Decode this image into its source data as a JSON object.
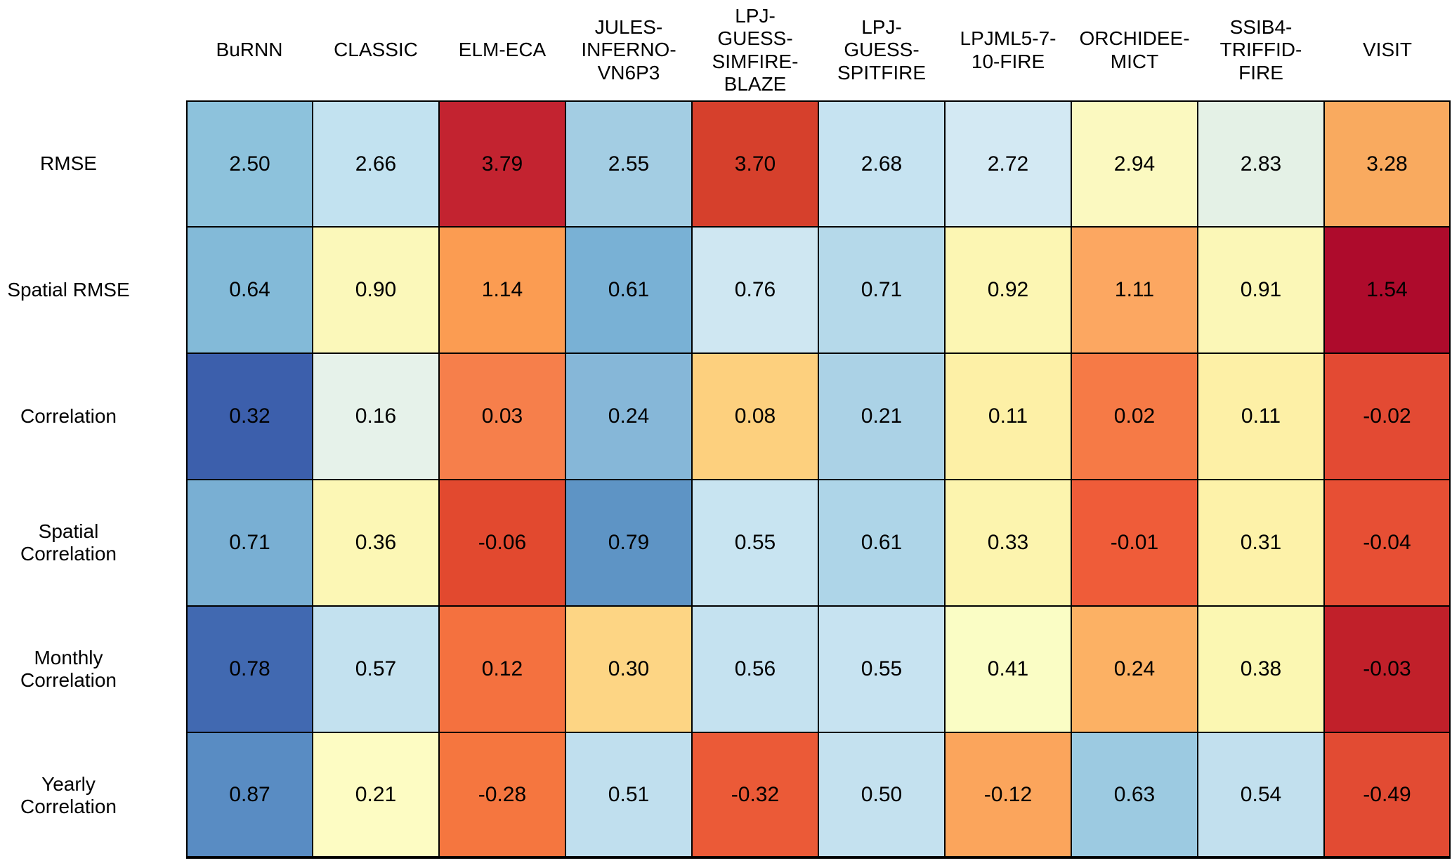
{
  "chart_data": {
    "type": "heatmap",
    "title": "",
    "xlabel": "",
    "ylabel": "",
    "legend": "none",
    "grid_color": "#000000",
    "text_color": "#000000",
    "background_color": "#ffffff",
    "columns": [
      "BuRNN",
      "CLASSIC",
      "ELM-ECA",
      "JULES-\nINFERNO-\nVN6P3",
      "LPJ-\nGUESS-\nSIMFIRE-\nBLAZE",
      "LPJ-\nGUESS-\nSPITFIRE",
      "LPJML5-7-\n10-FIRE",
      "ORCHIDEE-\nMICT",
      "SSIB4-\nTRIFFID-\nFIRE",
      "VISIT"
    ],
    "rows": [
      "RMSE",
      "Spatial RMSE",
      "Correlation",
      "Spatial Correlation",
      "Monthly Correlation",
      "Yearly Correlation"
    ],
    "values": [
      [
        "2.50",
        "2.66",
        "3.79",
        "2.55",
        "3.70",
        "2.68",
        "2.72",
        "2.94",
        "2.83",
        "3.28"
      ],
      [
        "0.64",
        "0.90",
        "1.14",
        "0.61",
        "0.76",
        "0.71",
        "0.92",
        "1.11",
        "0.91",
        "1.54"
      ],
      [
        "0.32",
        "0.16",
        "0.03",
        "0.24",
        "0.08",
        "0.21",
        "0.11",
        "0.02",
        "0.11",
        "-0.02"
      ],
      [
        "0.71",
        "0.36",
        "-0.06",
        "0.79",
        "0.55",
        "0.61",
        "0.33",
        "-0.01",
        "0.31",
        "-0.04"
      ],
      [
        "0.78",
        "0.57",
        "0.12",
        "0.30",
        "0.56",
        "0.55",
        "0.41",
        "0.24",
        "0.38",
        "-0.03"
      ],
      [
        "0.87",
        "0.21",
        "-0.28",
        "0.51",
        "-0.32",
        "0.50",
        "-0.12",
        "0.63",
        "0.54",
        "-0.49"
      ]
    ],
    "cell_colors": [
      [
        "#8dc2dc",
        "#c2e2f0",
        "#c32330",
        "#a3cde3",
        "#d6402c",
        "#c6e3f1",
        "#d3e9f3",
        "#fbf9c0",
        "#e4f1e6",
        "#f9aa5f"
      ],
      [
        "#83bad8",
        "#fbf8ba",
        "#fb9c52",
        "#79b1d5",
        "#cfe7f2",
        "#b5d9ea",
        "#fcf6b3",
        "#fca761",
        "#fbf7b7",
        "#ae0b2c"
      ],
      [
        "#3c5fac",
        "#e6f2ea",
        "#f67f4b",
        "#86b7d8",
        "#fdd07e",
        "#abd2e6",
        "#fdf0a6",
        "#f67a46",
        "#fdf0a6",
        "#e34a33"
      ],
      [
        "#79afd3",
        "#fcf7b5",
        "#e2492f",
        "#5e94c5",
        "#c8e4f1",
        "#aed5e8",
        "#fcf4ae",
        "#ef5c39",
        "#fdf2a9",
        "#e74f34"
      ],
      [
        "#4169b1",
        "#c3e1ef",
        "#f4713f",
        "#fdd584",
        "#c5e2f0",
        "#c7e3f1",
        "#fafdc5",
        "#fcb164",
        "#fbf7b2",
        "#c1202a"
      ],
      [
        "#598cc3",
        "#fdfcc3",
        "#f5763f",
        "#c0dfee",
        "#eb5a37",
        "#c4e1ef",
        "#fba55c",
        "#9ccae1",
        "#c2e0ee",
        "#e24b33"
      ]
    ]
  }
}
